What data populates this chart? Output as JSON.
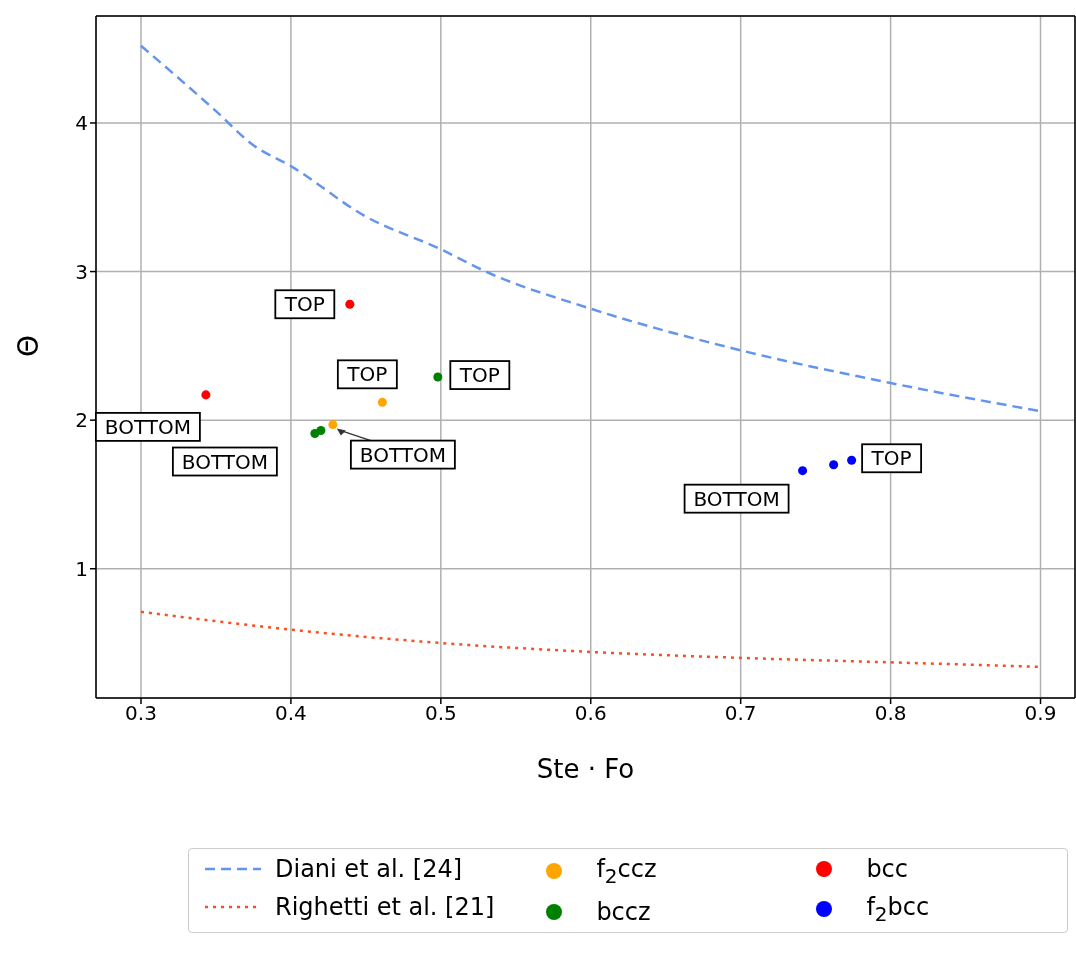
{
  "chart_data": {
    "type": "scatter",
    "xlabel": "Ste · Fo",
    "ylabel": "Θ",
    "xlim": [
      0.27,
      0.923
    ],
    "ylim": [
      0.13,
      4.72
    ],
    "xticks": [
      0.3,
      0.4,
      0.5,
      0.6,
      0.7,
      0.8,
      0.9
    ],
    "yticks": [
      1,
      2,
      3,
      4
    ],
    "grid": true,
    "legend": "bottom",
    "marker": "circle",
    "series": [
      {
        "name": "Diani et al. [24]",
        "type": "line",
        "line_style": "dashed",
        "marker": "none",
        "color": "#6495ed",
        "x": [
          0.3,
          0.35,
          0.375,
          0.4,
          0.45,
          0.5,
          0.53,
          0.6,
          0.7,
          0.8,
          0.9
        ],
        "values": [
          4.52,
          4.08,
          3.85,
          3.71,
          3.37,
          3.15,
          3.0,
          2.75,
          2.47,
          2.25,
          2.06
        ]
      },
      {
        "name": "Righetti et al. [21]",
        "type": "line",
        "line_style": "dotted",
        "marker": "none",
        "color": "#f4511e",
        "x": [
          0.3,
          0.4,
          0.5,
          0.6,
          0.7,
          0.8,
          0.9
        ],
        "values": [
          0.71,
          0.59,
          0.5,
          0.44,
          0.4,
          0.37,
          0.34
        ]
      },
      {
        "name": "f$_{2}$ccz",
        "color": "#ffa500",
        "x": [
          0.461,
          0.428
        ],
        "values": [
          2.12,
          1.97
        ]
      },
      {
        "name": "bccz",
        "color": "#008000",
        "x": [
          0.498,
          0.416,
          0.42
        ],
        "values": [
          2.29,
          1.91,
          1.93
        ]
      },
      {
        "name": "bcc",
        "color": "#ff0000",
        "x": [
          0.4393,
          0.3433
        ],
        "values": [
          2.78,
          2.17
        ]
      },
      {
        "name": "f$_{2}$bcc",
        "color": "#0000ff",
        "x": [
          0.774,
          0.762,
          0.7413
        ],
        "values": [
          1.73,
          1.7,
          1.66
        ]
      }
    ],
    "annotations": [
      {
        "text": "TOP",
        "x": 0.4393,
        "y": 2.78
      },
      {
        "text": "BOTTOM",
        "x": 0.3433,
        "y": 2.17
      },
      {
        "text": "TOP",
        "x": 0.498,
        "y": 2.29
      },
      {
        "text": "BOTTOM",
        "x": 0.416,
        "y": 1.91
      },
      {
        "text": "TOP",
        "x": 0.461,
        "y": 2.12
      },
      {
        "text": "BOTTOM",
        "x": 0.428,
        "y": 1.97
      },
      {
        "text": "TOP",
        "x": 0.774,
        "y": 1.73
      },
      {
        "text": "BOTTOM",
        "x": 0.7413,
        "y": 1.66
      }
    ]
  }
}
